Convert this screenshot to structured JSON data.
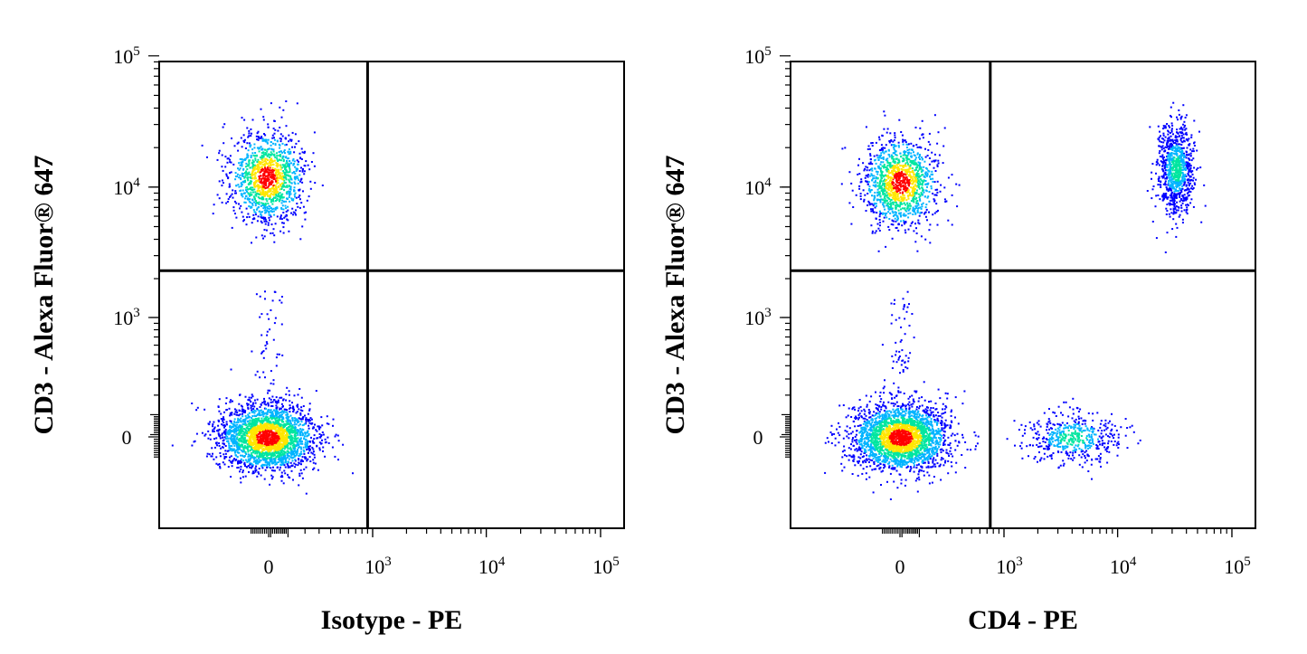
{
  "chart_data": [
    {
      "type": "scatter",
      "subtype": "flow-cytometry-density-dotplot",
      "xlabel": "Isotype - PE",
      "ylabel": "CD3 - Alexa Fluor® 647",
      "x_scale": "biexponential",
      "y_scale": "biexponential",
      "x_ticks": [
        {
          "value": 0,
          "label": "0"
        },
        {
          "value": 1000,
          "label": "10",
          "exp": "3"
        },
        {
          "value": 10000,
          "label": "10",
          "exp": "4"
        },
        {
          "value": 100000,
          "label": "10",
          "exp": "5"
        }
      ],
      "y_ticks": [
        {
          "value": 0,
          "label": "0"
        },
        {
          "value": 1000,
          "label": "10",
          "exp": "3"
        },
        {
          "value": 10000,
          "label": "10",
          "exp": "4"
        },
        {
          "value": 100000,
          "label": "10",
          "exp": "5"
        }
      ],
      "quadrant_gate": {
        "x": 900,
        "y": 2300
      },
      "grid": false,
      "populations": [
        {
          "name": "CD3- cells",
          "x_center": -10,
          "y_center": 0,
          "density": "high"
        },
        {
          "name": "CD3+ cells",
          "x_center": -10,
          "y_center": 12000,
          "density": "medium"
        }
      ]
    },
    {
      "type": "scatter",
      "subtype": "flow-cytometry-density-dotplot",
      "xlabel": "CD4 - PE",
      "ylabel": "CD3 - Alexa Fluor® 647",
      "x_scale": "biexponential",
      "y_scale": "biexponential",
      "x_ticks": [
        {
          "value": 0,
          "label": "0"
        },
        {
          "value": 1000,
          "label": "10",
          "exp": "3"
        },
        {
          "value": 10000,
          "label": "10",
          "exp": "4"
        },
        {
          "value": 100000,
          "label": "10",
          "exp": "5"
        }
      ],
      "y_ticks": [
        {
          "value": 0,
          "label": "0"
        },
        {
          "value": 1000,
          "label": "10",
          "exp": "3"
        },
        {
          "value": 10000,
          "label": "10",
          "exp": "4"
        },
        {
          "value": 100000,
          "label": "10",
          "exp": "5"
        }
      ],
      "quadrant_gate": {
        "x": 750,
        "y": 2300
      },
      "grid": false,
      "populations": [
        {
          "name": "CD3- CD4- cells",
          "x_center": 0,
          "y_center": 0,
          "density": "high"
        },
        {
          "name": "CD3+ CD4- cells",
          "x_center": 0,
          "y_center": 11000,
          "density": "medium"
        },
        {
          "name": "CD3+ CD4+ cells",
          "x_center": 32000,
          "y_center": 14000,
          "density": "high"
        },
        {
          "name": "CD3- CD4+ cells",
          "x_center": 4000,
          "y_center": 0,
          "density": "low"
        }
      ]
    }
  ],
  "colors": {
    "density_low": "#0000ff",
    "density_mid_low": "#00b4ff",
    "density_mid": "#00e6a0",
    "density_mid_high": "#ffe600",
    "density_high": "#ff0000",
    "frame": "#000000"
  }
}
